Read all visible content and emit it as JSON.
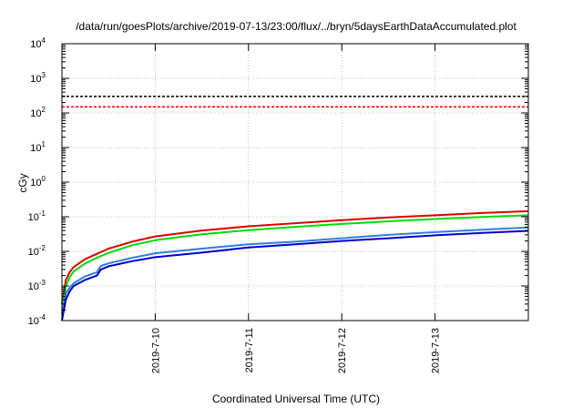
{
  "chart_data": {
    "type": "line",
    "title": "/data/run/goesPlots/archive/2019-07-13/23:00/flux/../bryn/5daysEarthDataAccumulated.plot",
    "xlabel": "Coordinated Universal Time (UTC)",
    "ylabel": "cGy",
    "x_scale": "time",
    "y_scale": "log",
    "xlim": [
      "2019-07-09T00:00",
      "2019-07-14T00:00"
    ],
    "ylim": [
      0.0001,
      10000
    ],
    "x_ticks": [
      "2019-7-10",
      "2019-7-11",
      "2019-7-12",
      "2019-7-13"
    ],
    "y_ticks": [
      {
        "base": "10",
        "exp": "-4"
      },
      {
        "base": "10",
        "exp": "-3"
      },
      {
        "base": "10",
        "exp": "-2"
      },
      {
        "base": "10",
        "exp": "-1"
      },
      {
        "base": "10",
        "exp": "0"
      },
      {
        "base": "10",
        "exp": "1"
      },
      {
        "base": "10",
        "exp": "2"
      },
      {
        "base": "10",
        "exp": "3"
      },
      {
        "base": "10",
        "exp": "4"
      }
    ],
    "grid": true,
    "thresholds": [
      {
        "value": 300,
        "color": "#000000",
        "style": "dashed"
      },
      {
        "value": 150,
        "color": "#ff0000",
        "style": "dashed"
      }
    ],
    "series": [
      {
        "color": "#dd0000",
        "x": [
          "2019-07-09T00:00",
          "2019-07-09T01:00",
          "2019-07-09T02:00",
          "2019-07-09T03:00",
          "2019-07-09T06:00",
          "2019-07-09T09:00",
          "2019-07-09T12:00",
          "2019-07-09T18:00",
          "2019-07-10T00:00",
          "2019-07-10T12:00",
          "2019-07-11T00:00",
          "2019-07-11T12:00",
          "2019-07-12T00:00",
          "2019-07-12T12:00",
          "2019-07-13T00:00",
          "2019-07-13T12:00",
          "2019-07-14T00:00"
        ],
        "y": [
          0.0003,
          0.0015,
          0.0025,
          0.0035,
          0.006,
          0.0085,
          0.012,
          0.019,
          0.027,
          0.04,
          0.053,
          0.065,
          0.08,
          0.095,
          0.11,
          0.128,
          0.145
        ]
      },
      {
        "color": "#00dd00",
        "x": [
          "2019-07-09T00:00",
          "2019-07-09T01:00",
          "2019-07-09T02:00",
          "2019-07-09T03:00",
          "2019-07-09T06:00",
          "2019-07-09T09:00",
          "2019-07-09T12:00",
          "2019-07-09T18:00",
          "2019-07-10T00:00",
          "2019-07-10T12:00",
          "2019-07-11T00:00",
          "2019-07-11T12:00",
          "2019-07-12T00:00",
          "2019-07-12T12:00",
          "2019-07-13T00:00",
          "2019-07-13T12:00",
          "2019-07-14T00:00"
        ],
        "y": [
          0.0002,
          0.001,
          0.0018,
          0.0026,
          0.0045,
          0.0065,
          0.009,
          0.015,
          0.021,
          0.031,
          0.041,
          0.051,
          0.062,
          0.074,
          0.086,
          0.098,
          0.11
        ]
      },
      {
        "color": "#2f7fdf",
        "x": [
          "2019-07-09T00:00",
          "2019-07-09T01:00",
          "2019-07-09T02:00",
          "2019-07-09T03:00",
          "2019-07-09T06:00",
          "2019-07-09T09:00",
          "2019-07-09T10:00",
          "2019-07-09T12:00",
          "2019-07-09T18:00",
          "2019-07-10T00:00",
          "2019-07-10T12:00",
          "2019-07-11T00:00",
          "2019-07-11T12:00",
          "2019-07-12T00:00",
          "2019-07-12T12:00",
          "2019-07-13T00:00",
          "2019-07-13T12:00",
          "2019-07-14T00:00"
        ],
        "y": [
          0.00015,
          0.0006,
          0.0009,
          0.0012,
          0.0019,
          0.0025,
          0.0038,
          0.0045,
          0.0065,
          0.0088,
          0.012,
          0.016,
          0.019,
          0.024,
          0.03,
          0.036,
          0.042,
          0.049
        ]
      },
      {
        "color": "#0000cc",
        "x": [
          "2019-07-09T00:00",
          "2019-07-09T01:00",
          "2019-07-09T02:00",
          "2019-07-09T03:00",
          "2019-07-09T06:00",
          "2019-07-09T09:00",
          "2019-07-09T10:00",
          "2019-07-09T12:00",
          "2019-07-09T18:00",
          "2019-07-10T00:00",
          "2019-07-10T12:00",
          "2019-07-11T00:00",
          "2019-07-11T12:00",
          "2019-07-12T00:00",
          "2019-07-12T12:00",
          "2019-07-13T00:00",
          "2019-07-13T12:00",
          "2019-07-14T00:00"
        ],
        "y": [
          0.0001,
          0.0004,
          0.0007,
          0.001,
          0.0015,
          0.002,
          0.003,
          0.0037,
          0.0052,
          0.0068,
          0.0092,
          0.013,
          0.016,
          0.02,
          0.024,
          0.029,
          0.034,
          0.039
        ]
      }
    ]
  }
}
